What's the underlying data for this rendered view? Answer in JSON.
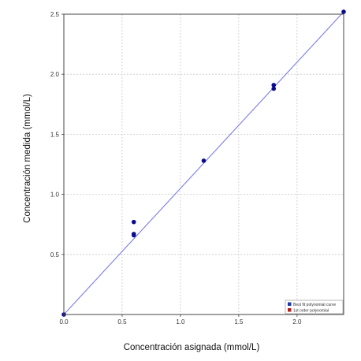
{
  "chart_data": {
    "type": "scatter",
    "xlabel": "Concentración asignada (mmol/L)",
    "ylabel": "Concentración medida (mmol/L)",
    "xlim": [
      0,
      2.4
    ],
    "ylim": [
      0,
      2.5
    ],
    "x_ticks": [
      "0.0",
      "0.5",
      "1.0",
      "1.5",
      "2.0"
    ],
    "y_ticks": [
      "0.5",
      "1.0",
      "1.5",
      "2.0",
      "2.5"
    ],
    "grid": true,
    "legend_position": "bottom-right",
    "series": [
      {
        "name": "Best fit polynomial curve",
        "mode": "markers",
        "color": "#0a0a8c",
        "x": [
          0.0,
          0.6,
          0.6,
          0.6,
          1.2,
          1.8,
          1.8,
          2.4
        ],
        "y": [
          0.0,
          0.77,
          0.67,
          0.66,
          1.28,
          1.91,
          1.88,
          2.52
        ]
      },
      {
        "name": "1st order polynomial",
        "mode": "line",
        "color": "#7b7bef",
        "x": [
          0.0,
          2.4
        ],
        "y": [
          0.0,
          2.52
        ]
      }
    ],
    "legend_colors": [
      "#1f3aa8",
      "#b02020"
    ]
  }
}
